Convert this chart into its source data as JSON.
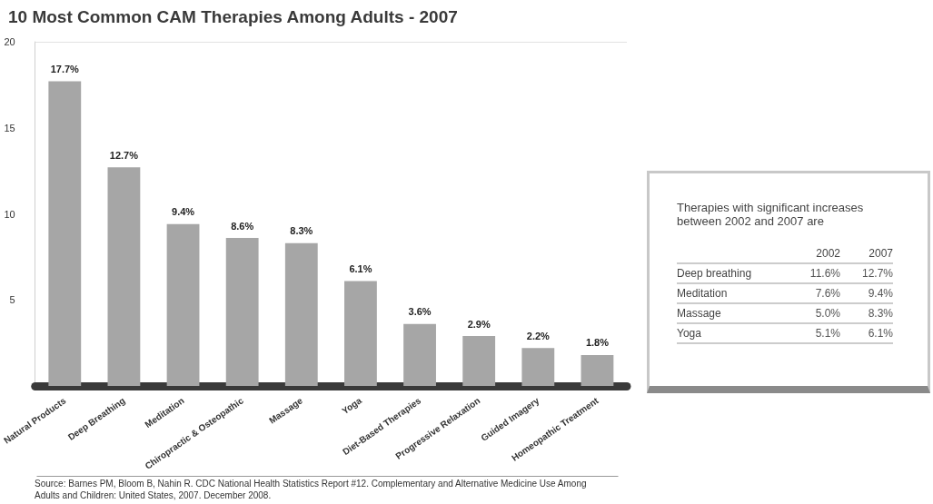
{
  "chart_data": [
    {
      "type": "bar",
      "title": "10 Most Common CAM Therapies Among Adults - 2007",
      "categories": [
        "Natural Products",
        "Deep Breathing",
        "Meditation",
        "Chiropractic & Osteopathic",
        "Massage",
        "Yoga",
        "Diet-Based Therapies",
        "Progressive Relaxation",
        "Guided Imagery",
        "Homeopathic Treatment"
      ],
      "values": [
        17.7,
        12.7,
        9.4,
        8.6,
        8.3,
        6.1,
        3.6,
        2.9,
        2.2,
        1.8
      ],
      "value_labels": [
        "17.7%",
        "12.7%",
        "9.4%",
        "8.6%",
        "8.3%",
        "6.1%",
        "3.6%",
        "2.9%",
        "2.2%",
        "1.8%"
      ],
      "color": "#a6a6a6",
      "ylim": [
        0,
        20
      ],
      "yticks": [
        5,
        10,
        15,
        20
      ],
      "grid": false,
      "ref_lines": [
        {
          "axis": "y",
          "value": 20,
          "color": "#e3e3e3"
        }
      ],
      "annotations": [
        "Source: Barnes PM, Bloom B, Nahin R. CDC National Health Statistics Report #12. Complementary and Alternative Medicine Use Among Adults and Children: United States, 2007. December 2008."
      ]
    },
    {
      "type": "other",
      "title": "Therapies with significant increases between 2002 and 2007 are",
      "categories": [
        "Deep breathing",
        "Meditation",
        "Massage",
        "Yoga"
      ],
      "series": [
        {
          "name": "2002",
          "values": [
            11.6,
            7.6,
            5.0,
            5.1
          ],
          "value_labels": [
            "11.6%",
            "7.6%",
            "5.0%",
            "5.1%"
          ]
        },
        {
          "name": "2007",
          "values": [
            12.7,
            9.4,
            8.3,
            6.1
          ],
          "value_labels": [
            "12.7%",
            "9.4%",
            "8.3%",
            "6.1%"
          ]
        }
      ]
    }
  ]
}
